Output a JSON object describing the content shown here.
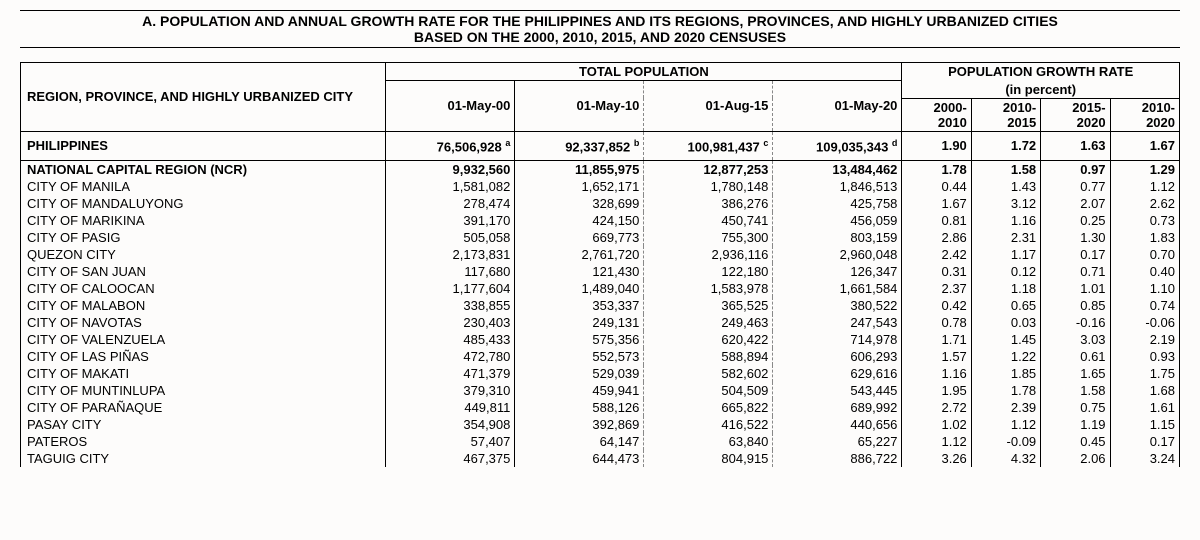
{
  "title_line1": "A. POPULATION AND ANNUAL GROWTH RATE FOR THE PHILIPPINES AND ITS REGIONS, PROVINCES, AND HIGHLY URBANIZED CITIES",
  "title_line2": "BASED ON THE 2000, 2010, 2015, AND 2020 CENSUSES",
  "headers": {
    "region": "REGION, PROVINCE, AND HIGHLY URBANIZED CITY",
    "total_pop": "TOTAL POPULATION",
    "growth": "POPULATION GROWTH RATE",
    "growth_sub": "(in percent)",
    "c1": "01-May-00",
    "c2": "01-May-10",
    "c3": "01-Aug-15",
    "c4": "01-May-20",
    "r1a": "2000-",
    "r1b": "2010",
    "r2a": "2010-",
    "r2b": "2015",
    "r3a": "2015-",
    "r3b": "2020",
    "r4a": "2010-",
    "r4b": "2020"
  },
  "philippines": {
    "label": "PHILIPPINES",
    "p": [
      "76,506,928",
      "92,337,852",
      "100,981,437",
      "109,035,343"
    ],
    "sup": [
      "a",
      "b",
      "c",
      "d"
    ],
    "r": [
      "1.90",
      "1.72",
      "1.63",
      "1.67"
    ]
  },
  "ncr": {
    "label": "NATIONAL CAPITAL REGION (NCR)",
    "p": [
      "9,932,560",
      "11,855,975",
      "12,877,253",
      "13,484,462"
    ],
    "r": [
      "1.78",
      "1.58",
      "0.97",
      "1.29"
    ]
  },
  "rows": [
    {
      "label": "CITY OF MANILA",
      "p": [
        "1,581,082",
        "1,652,171",
        "1,780,148",
        "1,846,513"
      ],
      "r": [
        "0.44",
        "1.43",
        "0.77",
        "1.12"
      ]
    },
    {
      "label": "CITY OF MANDALUYONG",
      "p": [
        "278,474",
        "328,699",
        "386,276",
        "425,758"
      ],
      "r": [
        "1.67",
        "3.12",
        "2.07",
        "2.62"
      ]
    },
    {
      "label": "CITY OF MARIKINA",
      "p": [
        "391,170",
        "424,150",
        "450,741",
        "456,059"
      ],
      "r": [
        "0.81",
        "1.16",
        "0.25",
        "0.73"
      ]
    },
    {
      "label": "CITY OF PASIG",
      "p": [
        "505,058",
        "669,773",
        "755,300",
        "803,159"
      ],
      "r": [
        "2.86",
        "2.31",
        "1.30",
        "1.83"
      ]
    },
    {
      "label": "QUEZON CITY",
      "p": [
        "2,173,831",
        "2,761,720",
        "2,936,116",
        "2,960,048"
      ],
      "r": [
        "2.42",
        "1.17",
        "0.17",
        "0.70"
      ]
    },
    {
      "label": "CITY OF SAN JUAN",
      "p": [
        "117,680",
        "121,430",
        "122,180",
        "126,347"
      ],
      "r": [
        "0.31",
        "0.12",
        "0.71",
        "0.40"
      ]
    },
    {
      "label": "CITY OF CALOOCAN",
      "p": [
        "1,177,604",
        "1,489,040",
        "1,583,978",
        "1,661,584"
      ],
      "r": [
        "2.37",
        "1.18",
        "1.01",
        "1.10"
      ]
    },
    {
      "label": "CITY OF MALABON",
      "p": [
        "338,855",
        "353,337",
        "365,525",
        "380,522"
      ],
      "r": [
        "0.42",
        "0.65",
        "0.85",
        "0.74"
      ]
    },
    {
      "label": "CITY OF NAVOTAS",
      "p": [
        "230,403",
        "249,131",
        "249,463",
        "247,543"
      ],
      "r": [
        "0.78",
        "0.03",
        "-0.16",
        "-0.06"
      ]
    },
    {
      "label": "CITY OF VALENZUELA",
      "p": [
        "485,433",
        "575,356",
        "620,422",
        "714,978"
      ],
      "r": [
        "1.71",
        "1.45",
        "3.03",
        "2.19"
      ]
    },
    {
      "label": "CITY OF LAS PIÑAS",
      "p": [
        "472,780",
        "552,573",
        "588,894",
        "606,293"
      ],
      "r": [
        "1.57",
        "1.22",
        "0.61",
        "0.93"
      ]
    },
    {
      "label": "CITY OF MAKATI",
      "p": [
        "471,379",
        "529,039",
        "582,602",
        "629,616"
      ],
      "r": [
        "1.16",
        "1.85",
        "1.65",
        "1.75"
      ]
    },
    {
      "label": "CITY OF MUNTINLUPA",
      "p": [
        "379,310",
        "459,941",
        "504,509",
        "543,445"
      ],
      "r": [
        "1.95",
        "1.78",
        "1.58",
        "1.68"
      ]
    },
    {
      "label": "CITY OF PARAÑAQUE",
      "p": [
        "449,811",
        "588,126",
        "665,822",
        "689,992"
      ],
      "r": [
        "2.72",
        "2.39",
        "0.75",
        "1.61"
      ]
    },
    {
      "label": "PASAY CITY",
      "p": [
        "354,908",
        "392,869",
        "416,522",
        "440,656"
      ],
      "r": [
        "1.02",
        "1.12",
        "1.19",
        "1.15"
      ]
    },
    {
      "label": "PATEROS",
      "p": [
        "57,407",
        "64,147",
        "63,840",
        "65,227"
      ],
      "r": [
        "1.12",
        "-0.09",
        "0.45",
        "0.17"
      ]
    },
    {
      "label": "TAGUIG CITY",
      "p": [
        "467,375",
        "644,473",
        "804,915",
        "886,722"
      ],
      "r": [
        "3.26",
        "4.32",
        "2.06",
        "3.24"
      ]
    }
  ]
}
